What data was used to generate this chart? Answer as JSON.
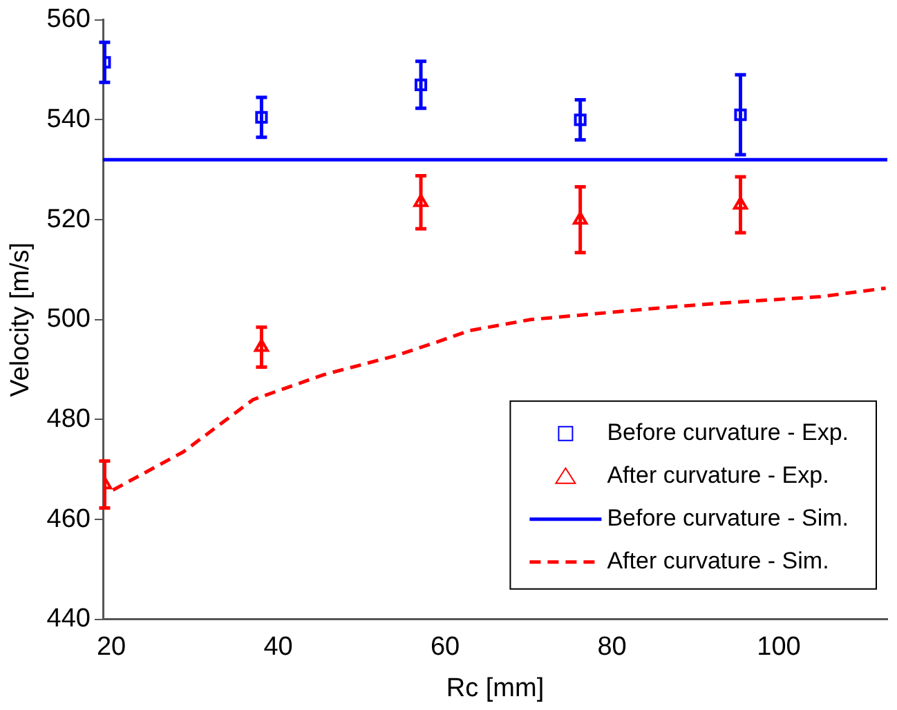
{
  "chart_data": {
    "type": "scatter",
    "xlabel": "Rc [mm]",
    "ylabel": "Velocity [m/s]",
    "xlim": [
      19,
      113
    ],
    "xticks": [
      20,
      40,
      60,
      80,
      100
    ],
    "ylim": [
      440,
      560
    ],
    "yticks": [
      440,
      460,
      480,
      500,
      520,
      540,
      560
    ],
    "grid": false,
    "legend": "bottom right",
    "series": [
      {
        "name": "Before curvature - Exp.",
        "type": "scatter",
        "marker": "square",
        "color": "#0000ff",
        "x": [
          19.2,
          38,
          57.1,
          76.2,
          95.4
        ],
        "values": [
          551.5,
          540.5,
          547,
          540,
          541
        ],
        "errors": [
          4,
          4,
          4.7,
          4,
          8
        ]
      },
      {
        "name": "After curvature - Exp.",
        "type": "scatter",
        "marker": "triangle",
        "color": "#ff0000",
        "x": [
          19.2,
          38,
          57.1,
          76.2,
          95.4
        ],
        "values": [
          467,
          494.5,
          523.5,
          520,
          523
        ],
        "errors": [
          4.7,
          4,
          5.3,
          6.6,
          5.6
        ]
      },
      {
        "name": "Before curvature - Sim.",
        "type": "line",
        "marker": "none",
        "line_style": "solid",
        "color": "#0000ff",
        "x": [
          19,
          113
        ],
        "values": [
          532,
          532
        ]
      },
      {
        "name": "After curvature - Sim.",
        "type": "line",
        "marker": "none",
        "line_style": "dashed",
        "color": "#ff0000",
        "x": [
          20.2,
          28.6,
          37,
          45.5,
          53.9,
          59,
          62.9,
          70.2,
          85.4,
          92.1,
          105,
          112.8
        ],
        "values": [
          465.9,
          473.5,
          484,
          489,
          492.7,
          495.5,
          497.8,
          500,
          502.3,
          503.2,
          504.6,
          506.3
        ]
      }
    ]
  }
}
